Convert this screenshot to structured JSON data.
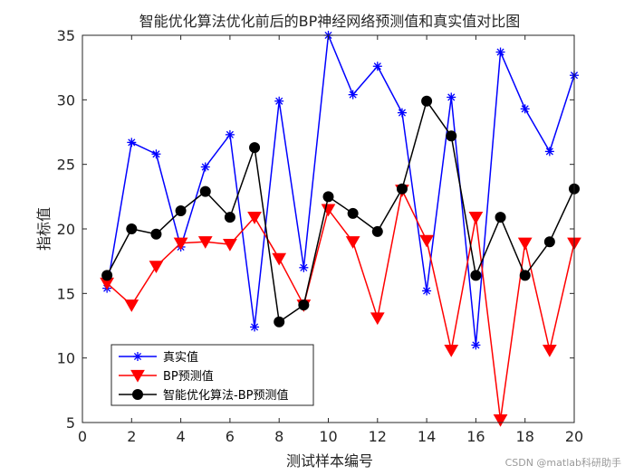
{
  "chart_data": {
    "type": "line",
    "title": "智能优化算法优化前后的BP神经网络预测值和真实值对比图",
    "xlabel": "测试样本编号",
    "ylabel": "指标值",
    "xlim": [
      0,
      20
    ],
    "ylim": [
      5,
      35
    ],
    "xticks": [
      0,
      2,
      4,
      6,
      8,
      10,
      12,
      14,
      16,
      18,
      20
    ],
    "yticks": [
      5,
      10,
      15,
      20,
      25,
      30,
      35
    ],
    "grid": false,
    "legend_position": "bottom-left",
    "x": [
      1,
      2,
      3,
      4,
      5,
      6,
      7,
      8,
      9,
      10,
      11,
      12,
      13,
      14,
      15,
      16,
      17,
      18,
      19,
      20
    ],
    "series": [
      {
        "name": "真实值",
        "color": "#0000ff",
        "marker": "asterisk",
        "values": [
          15.4,
          26.7,
          25.8,
          18.6,
          24.8,
          27.3,
          12.4,
          29.9,
          17.0,
          35.0,
          30.4,
          32.6,
          29.0,
          15.2,
          30.2,
          11.0,
          33.7,
          29.3,
          26.0,
          31.9
        ]
      },
      {
        "name": "BP预测值",
        "color": "#ff0000",
        "marker": "triangle-down",
        "values": [
          15.8,
          14.1,
          17.1,
          18.9,
          19.0,
          18.8,
          20.9,
          17.7,
          14.1,
          21.5,
          19.0,
          13.1,
          23.0,
          19.1,
          10.6,
          20.9,
          5.2,
          18.9,
          10.6,
          18.9
        ]
      },
      {
        "name": "智能优化算法-BP预测值",
        "color": "#000000",
        "marker": "circle",
        "values": [
          16.4,
          20.0,
          19.6,
          21.4,
          22.9,
          20.9,
          26.3,
          12.8,
          14.1,
          22.5,
          21.2,
          19.8,
          23.1,
          29.9,
          27.2,
          16.4,
          20.9,
          16.4,
          19.0,
          23.1
        ]
      }
    ]
  },
  "watermark": "CSDN @matlab科研助手"
}
